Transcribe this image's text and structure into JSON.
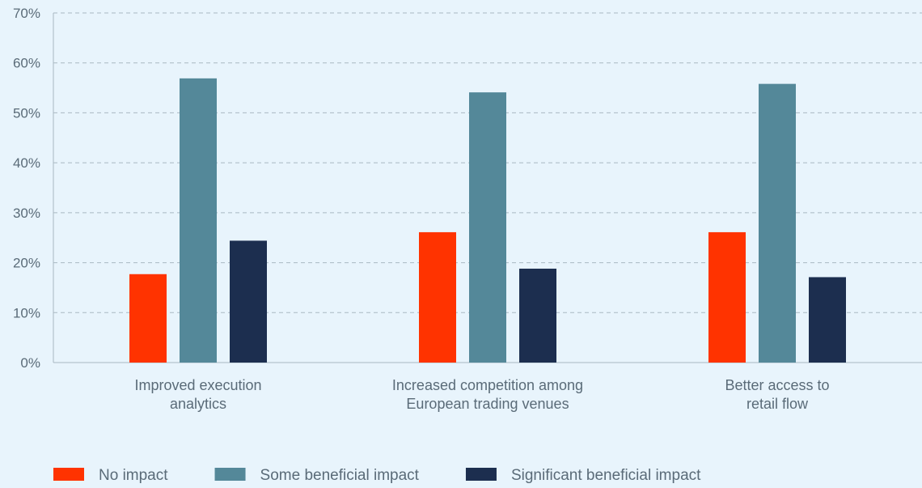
{
  "chart_data": {
    "type": "bar",
    "categories": [
      [
        "Improved execution",
        "analytics"
      ],
      [
        "Increased competition among",
        "European trading venues"
      ],
      [
        "Better access to",
        "retail flow"
      ]
    ],
    "series": [
      {
        "name": "No impact",
        "color": "#ff3300",
        "values": [
          17.7,
          26.1,
          26.1
        ]
      },
      {
        "name": "Some beneficial impact",
        "color": "#548899",
        "values": [
          56.9,
          54.1,
          55.8
        ]
      },
      {
        "name": "Significant beneficial impact",
        "color": "#1c2e4f",
        "values": [
          24.4,
          18.8,
          17.1
        ]
      }
    ],
    "yticks": [
      "0%",
      "10%",
      "20%",
      "30%",
      "40%",
      "50%",
      "60%",
      "70%"
    ],
    "ylim": [
      0,
      70
    ],
    "title": "",
    "xlabel": "",
    "ylabel": "",
    "grid": true,
    "legend": "bottom-left"
  }
}
